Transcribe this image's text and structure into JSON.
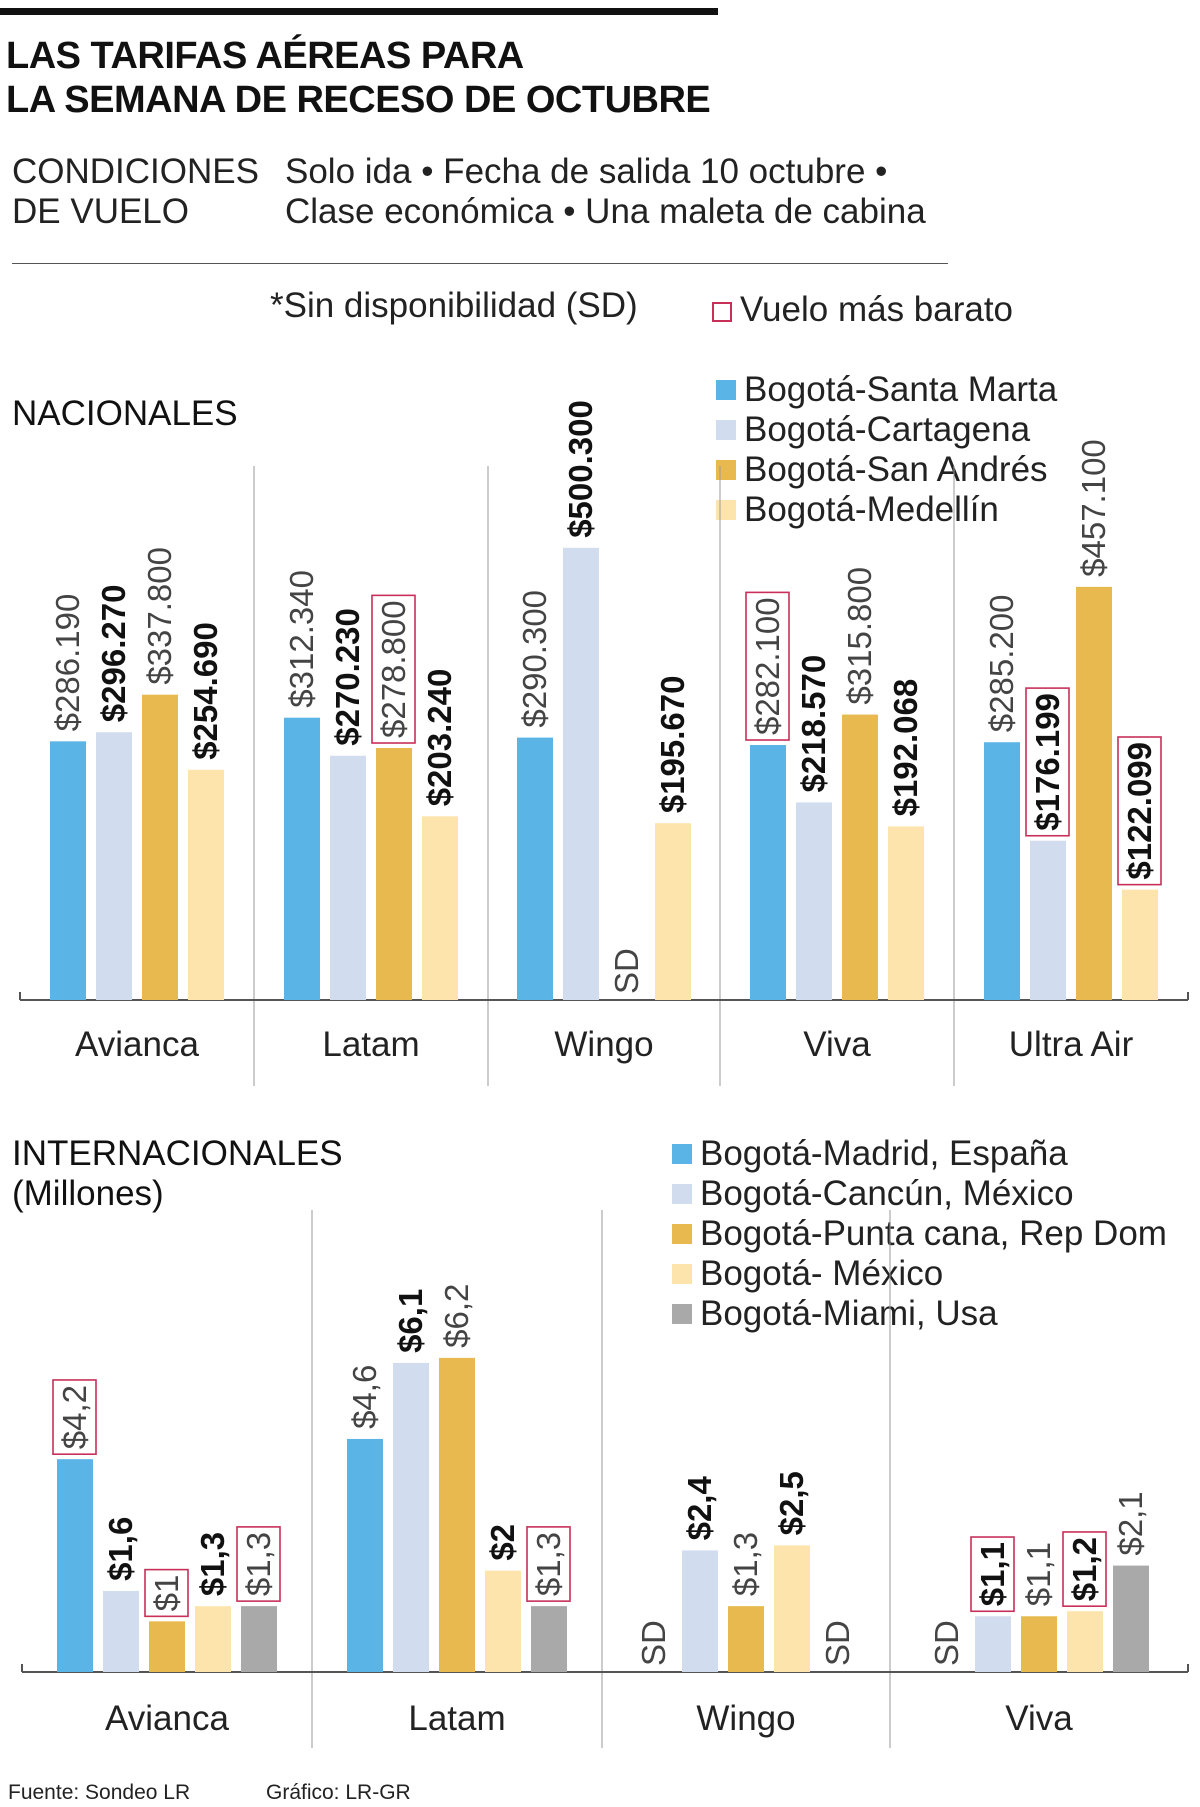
{
  "title_lines": [
    "LAS TARIFAS AÉREAS PARA",
    "LA SEMANA DE RECESO DE OCTUBRE"
  ],
  "conditions": {
    "label_lines": [
      "CONDICIONES",
      "DE VUELO"
    ],
    "text_lines": [
      "Solo ida • Fecha de salida 10 octubre •",
      "Clase económica • Una maleta de cabina"
    ]
  },
  "notes": {
    "no_availability": "*Sin disponibilidad (SD)",
    "cheapest": "Vuelo más barato"
  },
  "colors": {
    "blue": "#5ab4e6",
    "lightblue": "#d2dcef",
    "gold": "#e8b94e",
    "cream": "#fde4ad",
    "gray": "#a9a9a9",
    "highlight": "#c8305a",
    "axis": "#555555"
  },
  "chart_data": [
    {
      "type": "bar",
      "title": "NACIONALES",
      "categories": [
        "Avianca",
        "Latam",
        "Wingo",
        "Viva",
        "Ultra Air"
      ],
      "legend": "top-right",
      "ylim": [
        0,
        520000
      ],
      "missing_label": "SD",
      "series": [
        {
          "name": "Bogotá-Santa Marta",
          "color": "#5ab4e6",
          "values": [
            286190,
            312340,
            290300,
            282100,
            285200
          ],
          "labels": [
            "$286.190",
            "$312.340",
            "$290.300",
            "$282.100",
            "$285.200"
          ],
          "bold": [
            false,
            false,
            false,
            false,
            false
          ],
          "cheapest": [
            false,
            false,
            false,
            true,
            false
          ]
        },
        {
          "name": "Bogotá-Cartagena",
          "color": "#d2dcef",
          "values": [
            296270,
            270230,
            500300,
            218570,
            176199
          ],
          "labels": [
            "$296.270",
            "$270.230",
            "$500.300",
            "$218.570",
            "$176.199"
          ],
          "bold": [
            true,
            true,
            true,
            true,
            true
          ],
          "cheapest": [
            false,
            false,
            false,
            false,
            true
          ]
        },
        {
          "name": "Bogotá-San Andrés",
          "color": "#e8b94e",
          "values": [
            337800,
            278800,
            null,
            315800,
            457100
          ],
          "labels": [
            "$337.800",
            "$278.800",
            "SD",
            "$315.800",
            "$457.100"
          ],
          "bold": [
            false,
            false,
            false,
            false,
            false
          ],
          "cheapest": [
            false,
            true,
            false,
            false,
            false
          ]
        },
        {
          "name": "Bogotá-Medellín",
          "color": "#fde4ad",
          "values": [
            254690,
            203240,
            195670,
            192068,
            122099
          ],
          "labels": [
            "$254.690",
            "$203.240",
            "$195.670",
            "$192.068",
            "$122.099"
          ],
          "bold": [
            true,
            true,
            true,
            true,
            true
          ],
          "cheapest": [
            false,
            false,
            false,
            false,
            true
          ]
        }
      ]
    },
    {
      "type": "bar",
      "title": "INTERNACIONALES",
      "subtitle": "(Millones)",
      "categories": [
        "Avianca",
        "Latam",
        "Wingo",
        "Viva"
      ],
      "legend": "top-right",
      "ylim": [
        0,
        7.5
      ],
      "missing_label": "SD",
      "series": [
        {
          "name": "Bogotá-Madrid, España",
          "color": "#5ab4e6",
          "values": [
            4.2,
            4.6,
            null,
            null
          ],
          "labels": [
            "$4,2",
            "$4,6",
            "SD",
            "SD"
          ],
          "bold": [
            false,
            false,
            false,
            false
          ],
          "cheapest": [
            true,
            false,
            false,
            false
          ]
        },
        {
          "name": "Bogotá-Cancún, México",
          "color": "#d2dcef",
          "values": [
            1.6,
            6.1,
            2.4,
            1.1
          ],
          "labels": [
            "$1,6",
            "$6,1",
            "$2,4",
            "$1,1"
          ],
          "bold": [
            true,
            true,
            true,
            true
          ],
          "cheapest": [
            false,
            false,
            false,
            true
          ]
        },
        {
          "name": "Bogotá-Punta cana, Rep Dom",
          "color": "#e8b94e",
          "values": [
            1,
            6.2,
            1.3,
            1.1
          ],
          "labels": [
            "$1",
            "$6,2",
            "$1,3",
            "$1,1"
          ],
          "bold": [
            false,
            false,
            false,
            false
          ],
          "cheapest": [
            true,
            false,
            false,
            false
          ]
        },
        {
          "name": "Bogotá- México",
          "color": "#fde4ad",
          "values": [
            1.3,
            2,
            2.5,
            1.2
          ],
          "labels": [
            "$1,3",
            "$2",
            "$2,5",
            "$1,2"
          ],
          "bold": [
            true,
            true,
            true,
            true
          ],
          "cheapest": [
            false,
            false,
            false,
            true
          ]
        },
        {
          "name": "Bogotá-Miami, Usa",
          "color": "#a9a9a9",
          "values": [
            1.3,
            1.3,
            null,
            2.1
          ],
          "labels": [
            "$1,3",
            "$1,3",
            "SD",
            "$2,1"
          ],
          "bold": [
            false,
            false,
            false,
            false
          ],
          "cheapest": [
            true,
            true,
            false,
            false
          ]
        }
      ]
    }
  ],
  "footer": {
    "source": "Fuente: Sondeo LR",
    "graphic": "Gráfico: LR-GR"
  }
}
